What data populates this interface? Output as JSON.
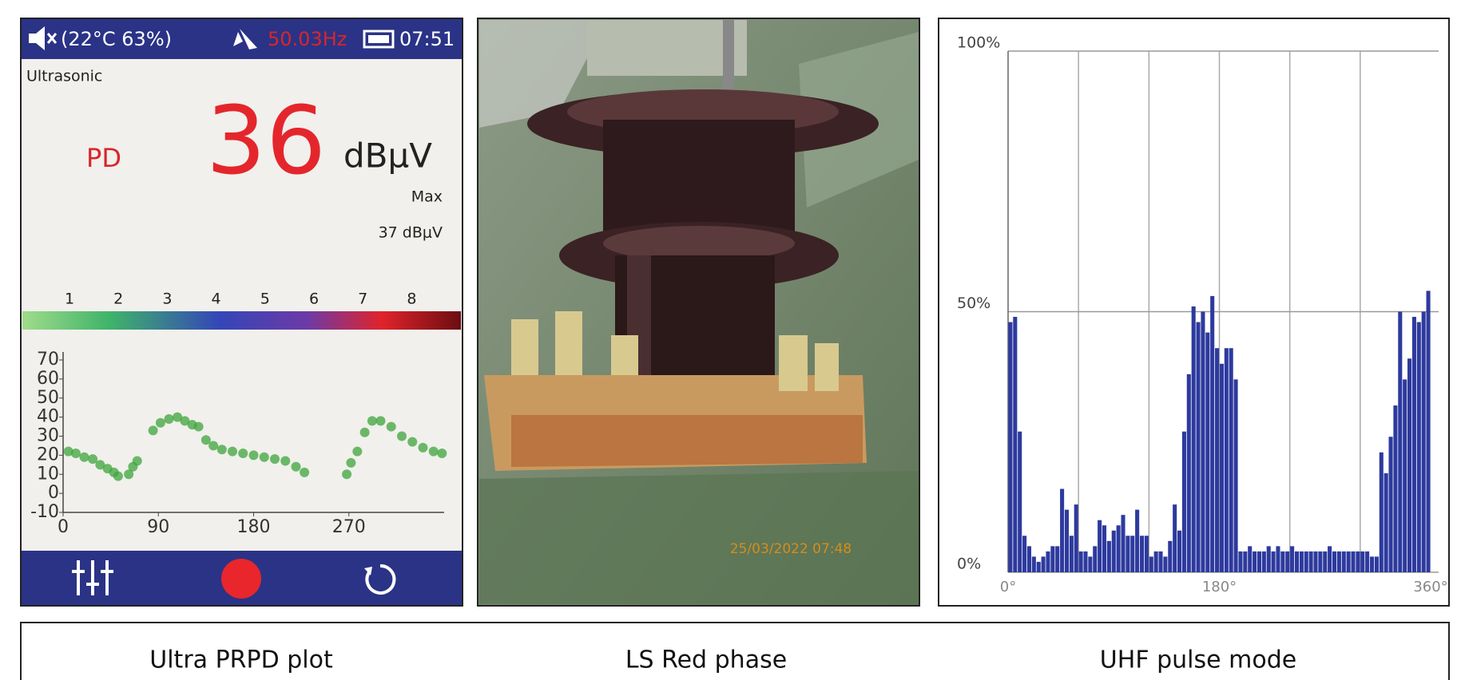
{
  "device_screen": {
    "status": {
      "temperature_humidity": "(22°C  63%)",
      "frequency": "50.03Hz",
      "time": "07:51"
    },
    "mode": "Ultrasonic",
    "label": "PD",
    "reading": "36",
    "unit": "dBμV",
    "max_label": "Max",
    "max_value": "37 dBμV",
    "scale_labels": [
      "1",
      "2",
      "3",
      "4",
      "5",
      "6",
      "7",
      "8"
    ]
  },
  "prpd_chart": {
    "type": "scatter",
    "x": [
      5,
      12,
      20,
      28,
      35,
      42,
      48,
      52,
      62,
      66,
      70,
      85,
      92,
      100,
      108,
      115,
      122,
      128,
      135,
      142,
      150,
      160,
      170,
      180,
      190,
      200,
      210,
      220,
      228,
      268,
      272,
      278,
      285,
      292,
      300,
      310,
      320,
      330,
      340,
      350,
      358
    ],
    "y": [
      22,
      21,
      19,
      18,
      15,
      13,
      11,
      9,
      10,
      14,
      17,
      33,
      37,
      39,
      40,
      38,
      36,
      35,
      28,
      25,
      23,
      22,
      21,
      20,
      19,
      18,
      17,
      14,
      11,
      10,
      16,
      22,
      32,
      38,
      38,
      35,
      30,
      27,
      24,
      22,
      21
    ],
    "xlim": [
      0,
      360
    ],
    "ylim": [
      -10,
      70
    ],
    "xticks": [
      0,
      90,
      180,
      270
    ],
    "yticks": [
      70,
      60,
      50,
      40,
      30,
      20,
      10,
      0,
      -10
    ],
    "color": "#3ea43c"
  },
  "photo": {
    "timestamp": "25/03/2022 07:48"
  },
  "uhf_chart": {
    "type": "histogram",
    "bins": [
      0,
      4,
      8,
      12,
      16,
      20,
      24,
      28,
      32,
      36,
      40,
      44,
      48,
      52,
      56,
      60,
      64,
      68,
      72,
      76,
      80,
      84,
      88,
      92,
      96,
      100,
      104,
      108,
      112,
      116,
      120,
      124,
      128,
      132,
      136,
      140,
      144,
      148,
      152,
      156,
      160,
      164,
      168,
      172,
      176,
      180,
      184,
      188,
      192,
      196,
      200,
      204,
      208,
      212,
      216,
      220,
      224,
      228,
      232,
      236,
      240,
      244,
      248,
      252,
      256,
      260,
      264,
      268,
      272,
      276,
      280,
      284,
      288,
      292,
      296,
      300,
      304,
      308,
      312,
      316,
      320,
      324,
      328,
      332,
      336,
      340,
      344,
      348,
      352,
      356,
      360
    ],
    "values": [
      48,
      49,
      27,
      7,
      5,
      3,
      2,
      3,
      4,
      5,
      5,
      16,
      12,
      7,
      13,
      4,
      4,
      3,
      5,
      10,
      9,
      6,
      8,
      9,
      11,
      7,
      7,
      12,
      7,
      7,
      3,
      4,
      4,
      3,
      6,
      13,
      8,
      27,
      38,
      51,
      48,
      50,
      46,
      53,
      43,
      40,
      43,
      43,
      37,
      4,
      4,
      5,
      4,
      4,
      4,
      5,
      4,
      5,
      4,
      4,
      5,
      4,
      4,
      4,
      4,
      4,
      4,
      4,
      5,
      4,
      4,
      4,
      4,
      4,
      4,
      4,
      4,
      3,
      3,
      23,
      19,
      26,
      32,
      50,
      37,
      41,
      49,
      48,
      50,
      54
    ],
    "xlim": [
      0,
      360
    ],
    "ylim": [
      0,
      100
    ],
    "xticks": [
      {
        "value": 0,
        "label": "0°"
      },
      {
        "value": 180,
        "label": "180°"
      },
      {
        "value": 360,
        "label": "360°"
      }
    ],
    "yticks": [
      {
        "value": 0,
        "label": "0%"
      },
      {
        "value": 50,
        "label": "50%"
      },
      {
        "value": 100,
        "label": "100%"
      }
    ],
    "x_grid": [
      60,
      120,
      180,
      240,
      300
    ],
    "color": "#2d3a9e"
  },
  "captions": [
    "Ultra PRPD plot",
    "LS Red phase",
    "UHF pulse mode"
  ]
}
